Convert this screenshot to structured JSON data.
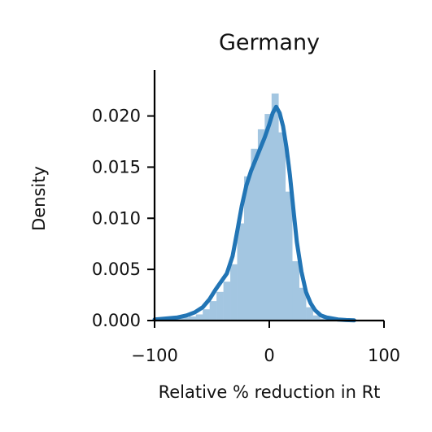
{
  "chart_data": {
    "type": "histogram",
    "title": "Germany",
    "xlabel": "Relative % reduction in Rt",
    "ylabel": "Density",
    "xlim": [
      -100,
      100
    ],
    "ylim": [
      0,
      0.0245
    ],
    "xticks": [
      -100,
      0,
      100
    ],
    "xtick_labels": [
      "−100",
      "0",
      "100"
    ],
    "yticks": [
      0,
      0.005,
      0.01,
      0.015,
      0.02
    ],
    "ytick_labels": [
      "0.000",
      "0.005",
      "0.010",
      "0.015",
      "0.020"
    ],
    "grid": false,
    "legend": "none",
    "colors": {
      "bars": "#a3c6e1",
      "kde": "#2275b5"
    },
    "histogram": {
      "bin_edges": [
        -100,
        -94,
        -88,
        -82,
        -76,
        -70,
        -64,
        -58,
        -52,
        -46,
        -40,
        -34,
        -28,
        -22,
        -16,
        -10,
        -4,
        2,
        8,
        14,
        20,
        26,
        32,
        38,
        44,
        50,
        56,
        62,
        68,
        74
      ],
      "density": [
        0.0001,
        0.0001,
        0.0002,
        0.0002,
        0.0003,
        0.0004,
        0.0006,
        0.0011,
        0.0019,
        0.0028,
        0.0038,
        0.0055,
        0.0095,
        0.0141,
        0.0168,
        0.0187,
        0.0202,
        0.0222,
        0.0184,
        0.0126,
        0.0058,
        0.0032,
        0.0013,
        0.0005,
        0.0002,
        0.0001,
        0.0001,
        5e-05,
        2e-05
      ]
    },
    "kde": {
      "x": [
        -100,
        -90,
        -80,
        -72,
        -65,
        -58,
        -52,
        -47,
        -42,
        -37,
        -32,
        -28,
        -24,
        -20,
        -16,
        -12,
        -8,
        -4,
        0,
        3,
        6,
        9,
        12,
        15,
        18,
        21,
        24,
        28,
        32,
        36,
        40,
        45,
        50,
        55,
        60,
        67,
        74
      ],
      "y": [
        0.0001,
        0.0002,
        0.0003,
        0.0005,
        0.0008,
        0.0013,
        0.0021,
        0.003,
        0.0038,
        0.0046,
        0.0063,
        0.0087,
        0.0112,
        0.0132,
        0.0146,
        0.0157,
        0.0168,
        0.0179,
        0.0192,
        0.0203,
        0.0209,
        0.0203,
        0.019,
        0.0169,
        0.0142,
        0.0109,
        0.0077,
        0.0048,
        0.0028,
        0.0017,
        0.001,
        0.0005,
        0.0003,
        0.0002,
        0.0001,
        5e-05,
        2e-05
      ]
    }
  }
}
